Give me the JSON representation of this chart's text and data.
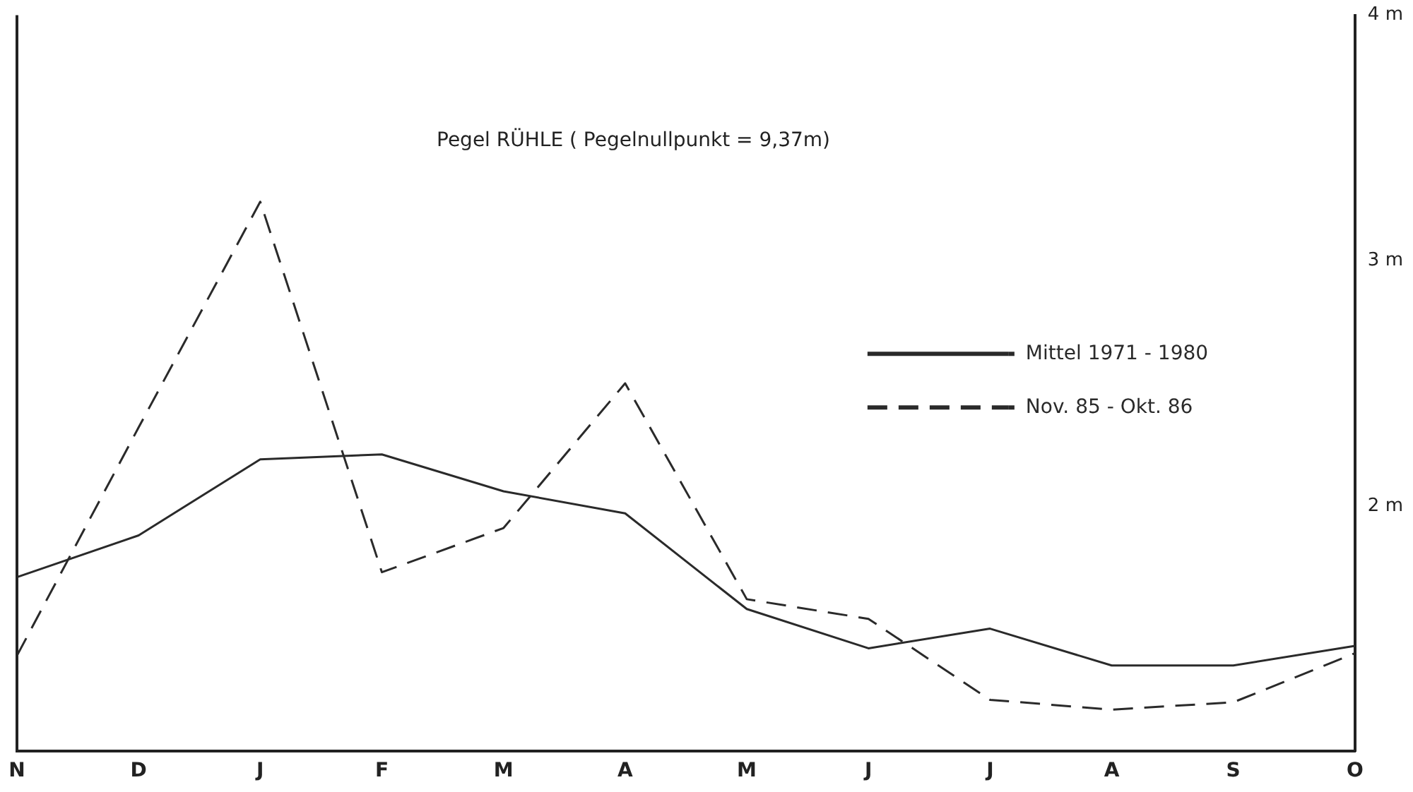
{
  "chart_data": {
    "type": "line",
    "title": "Pegel RÜHLE ( Pegelnullpunkt = 9,37m)",
    "categories": [
      "N",
      "D",
      "J",
      "F",
      "M",
      "A",
      "M",
      "J",
      "J",
      "A",
      "S",
      "O"
    ],
    "series": [
      {
        "name": "Mittel 1971 - 1980",
        "color": "#2a2a2a",
        "line_style": "solid",
        "values": [
          1.71,
          1.88,
          2.19,
          2.21,
          2.06,
          1.97,
          1.58,
          1.42,
          1.5,
          1.35,
          1.35,
          1.43
        ]
      },
      {
        "name": "Nov. 85 - Okt. 86",
        "color": "#2a2a2a",
        "line_style": "dashed",
        "values": [
          1.39,
          2.32,
          3.24,
          1.73,
          1.91,
          2.5,
          1.62,
          1.54,
          1.21,
          1.17,
          1.2,
          1.4
        ]
      }
    ],
    "ylim": [
      1,
      4
    ],
    "yticks": [
      {
        "value": 2,
        "label": "2 m"
      },
      {
        "value": 3,
        "label": "3 m"
      },
      {
        "value": 4,
        "label": "4 m"
      }
    ],
    "grid": false,
    "legend": "right",
    "marker": "none"
  }
}
